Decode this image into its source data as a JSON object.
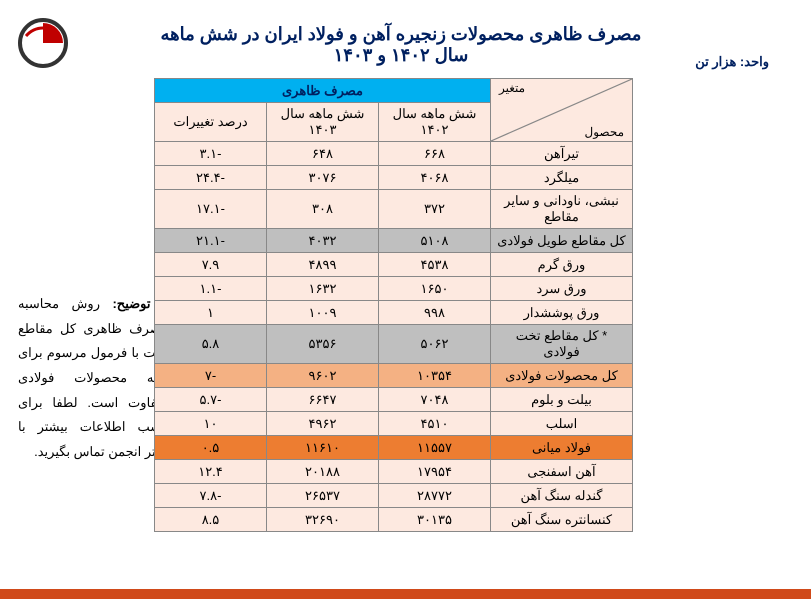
{
  "title": "مصرف ظاهری محصولات زنجیره آهن و فولاد ایران در شش ماهه سال ۱۴۰۲ و ۱۴۰۳",
  "unit": "واحد: هزار تن",
  "note_label": "* توضیح:",
  "note_text": "روش محاسبه مصرف ظاهری کل مقاطع تخت با فرمول مرسوم برای بقیه محصولات فولادی متفاوت است. لطفا برای کسب اطلاعات بیشتر با دفتر انجمن تماس بگیرید.",
  "corner": {
    "top": "متغیر",
    "bottom": "محصول"
  },
  "header_main": "مصرف ظاهری",
  "cols": {
    "c1": "شش ماهه سال ۱۴۰۲",
    "c2": "شش ماهه سال ۱۴۰۳",
    "c3": "درصد تغییرات"
  },
  "rows": [
    {
      "p": "تیرآهن",
      "v1": "۶۶۸",
      "v2": "۶۴۸",
      "v3": "-۳.۱",
      "cls": "r-light"
    },
    {
      "p": "میلگرد",
      "v1": "۴۰۶۸",
      "v2": "۳۰۷۶",
      "v3": "-۲۴.۴",
      "cls": "r-light"
    },
    {
      "p": "نبشی، ناودانی و سایر مقاطع",
      "v1": "۳۷۲",
      "v2": "۳۰۸",
      "v3": "-۱۷.۱",
      "cls": "r-light"
    },
    {
      "p": "کل مقاطع طویل فولادی",
      "v1": "۵۱۰۸",
      "v2": "۴۰۳۲",
      "v3": "-۲۱.۱",
      "cls": "r-gray"
    },
    {
      "p": "ورق گرم",
      "v1": "۴۵۳۸",
      "v2": "۴۸۹۹",
      "v3": "۷.۹",
      "cls": "r-light"
    },
    {
      "p": "ورق سرد",
      "v1": "۱۶۵۰",
      "v2": "۱۶۳۲",
      "v3": "-۱.۱",
      "cls": "r-light"
    },
    {
      "p": "ورق پوششدار",
      "v1": "۹۹۸",
      "v2": "۱۰۰۹",
      "v3": "۱",
      "cls": "r-light"
    },
    {
      "p": "* کل مقاطع تخت فولادی",
      "v1": "۵۰۶۲",
      "v2": "۵۳۵۶",
      "v3": "۵.۸",
      "cls": "r-gray"
    },
    {
      "p": "کل محصولات فولادی",
      "v1": "۱۰۳۵۴",
      "v2": "۹۶۰۲",
      "v3": "-۷",
      "cls": "r-orange"
    },
    {
      "p": "بیلت و بلوم",
      "v1": "۷۰۴۸",
      "v2": "۶۶۴۷",
      "v3": "-۵.۷",
      "cls": "r-light"
    },
    {
      "p": "اسلب",
      "v1": "۴۵۱۰",
      "v2": "۴۹۶۲",
      "v3": "۱۰",
      "cls": "r-light"
    },
    {
      "p": "فولاد میانی",
      "v1": "۱۱۵۵۷",
      "v2": "۱۱۶۱۰",
      "v3": "۰.۵",
      "cls": "r-dorange"
    },
    {
      "p": "آهن اسفنجی",
      "v1": "۱۷۹۵۴",
      "v2": "۲۰۱۸۸",
      "v3": "۱۲.۴",
      "cls": "r-light"
    },
    {
      "p": "گندله سنگ آهن",
      "v1": "۲۸۷۷۲",
      "v2": "۲۶۵۳۷",
      "v3": "-۷.۸",
      "cls": "r-light"
    },
    {
      "p": "کنسانتره سنگ آهن",
      "v1": "۳۰۱۳۵",
      "v2": "۳۲۶۹۰",
      "v3": "۸.۵",
      "cls": "r-light"
    }
  ]
}
